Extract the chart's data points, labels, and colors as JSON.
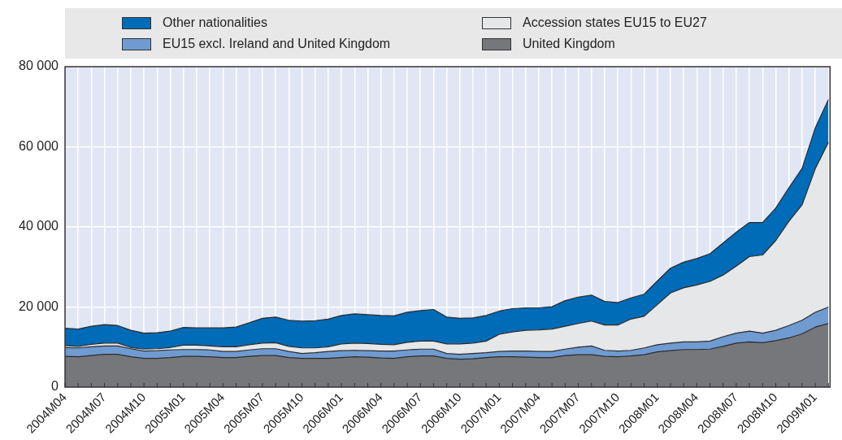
{
  "chart_data": {
    "type": "area",
    "stacked": true,
    "categories": [
      "2004M04",
      null,
      null,
      "2004M07",
      null,
      null,
      "2004M10",
      null,
      null,
      "2005M01",
      null,
      null,
      "2005M04",
      null,
      null,
      "2005M07",
      null,
      null,
      "2005M10",
      null,
      null,
      "2006M01",
      null,
      null,
      "2006M04",
      null,
      null,
      "2006M07",
      null,
      null,
      "2006M10",
      null,
      null,
      "2007M01",
      null,
      null,
      "2007M04",
      null,
      null,
      "2007M07",
      null,
      null,
      "2007M10",
      null,
      null,
      "2008M01",
      null,
      null,
      "2008M04",
      null,
      null,
      "2008M07",
      null,
      null,
      "2008M10",
      null,
      null,
      "2009M01",
      null
    ],
    "series": [
      {
        "name": "United Kingdom",
        "color": "#76777b",
        "values": [
          7700,
          7600,
          7900,
          8200,
          8200,
          7600,
          7200,
          7200,
          7400,
          7700,
          7700,
          7600,
          7400,
          7400,
          7700,
          7900,
          7900,
          7400,
          7200,
          7200,
          7200,
          7400,
          7600,
          7500,
          7300,
          7200,
          7600,
          7800,
          7800,
          7200,
          7000,
          7100,
          7400,
          7600,
          7600,
          7500,
          7400,
          7400,
          7900,
          8100,
          8100,
          7700,
          7600,
          7800,
          8100,
          8800,
          9100,
          9400,
          9400,
          9500,
          10200,
          11000,
          11300,
          11100,
          11600,
          12300,
          13300,
          15000,
          15900
        ]
      },
      {
        "name": "EU15 excl. Ireland and United Kingdom",
        "color": "#6f9bd1",
        "values": [
          2200,
          2200,
          2200,
          2100,
          2100,
          2000,
          1800,
          1900,
          1900,
          1700,
          1700,
          1700,
          1500,
          1500,
          1600,
          1700,
          1700,
          1500,
          1200,
          1400,
          1700,
          1700,
          1600,
          1600,
          1700,
          1800,
          1700,
          1700,
          1700,
          1200,
          1200,
          1300,
          1200,
          1300,
          1400,
          1500,
          1500,
          1500,
          1600,
          1900,
          2200,
          1500,
          1400,
          1400,
          1700,
          1800,
          1900,
          1900,
          1900,
          2000,
          2400,
          2500,
          2700,
          2400,
          2600,
          3100,
          3400,
          3700,
          4100
        ]
      },
      {
        "name": "Accession states EU15 to EU27",
        "color": "#e6e7e9",
        "values": [
          500,
          400,
          600,
          700,
          700,
          300,
          500,
          500,
          600,
          1100,
          1100,
          1000,
          1200,
          1200,
          1300,
          1400,
          1500,
          1300,
          1400,
          1200,
          1200,
          1700,
          1800,
          1800,
          1700,
          1600,
          1900,
          2000,
          2000,
          2400,
          2600,
          2600,
          2900,
          4300,
          4800,
          5200,
          5400,
          5600,
          5700,
          5900,
          6200,
          6300,
          6500,
          7800,
          7900,
          10000,
          12500,
          13500,
          14200,
          14900,
          15400,
          16700,
          18600,
          19500,
          22400,
          26000,
          28800,
          35800,
          41100
        ]
      },
      {
        "name": "Other nationalities",
        "color": "#006bb6",
        "values": [
          4300,
          4300,
          4500,
          4600,
          4400,
          4300,
          4000,
          4000,
          4100,
          4400,
          4300,
          4500,
          4700,
          4900,
          5500,
          6200,
          6400,
          6500,
          6700,
          6800,
          6900,
          7100,
          7300,
          7200,
          7200,
          7200,
          7500,
          7600,
          7900,
          6700,
          6400,
          6300,
          6400,
          5800,
          5800,
          5600,
          5500,
          5600,
          6400,
          6600,
          6500,
          5900,
          5600,
          5300,
          5500,
          5900,
          6200,
          6400,
          6600,
          6900,
          8000,
          8500,
          8500,
          8100,
          8100,
          8400,
          9100,
          10200,
          10700
        ]
      }
    ],
    "ylim": [
      0,
      80000
    ],
    "yticks": [
      0,
      {
        "value": 20000,
        "label": "20 000"
      },
      {
        "value": 40000,
        "label": "40 000"
      },
      {
        "value": 60000,
        "label": "60 000"
      },
      {
        "value": 80000,
        "label": "80 000"
      }
    ],
    "grid": true,
    "legend": "top"
  }
}
